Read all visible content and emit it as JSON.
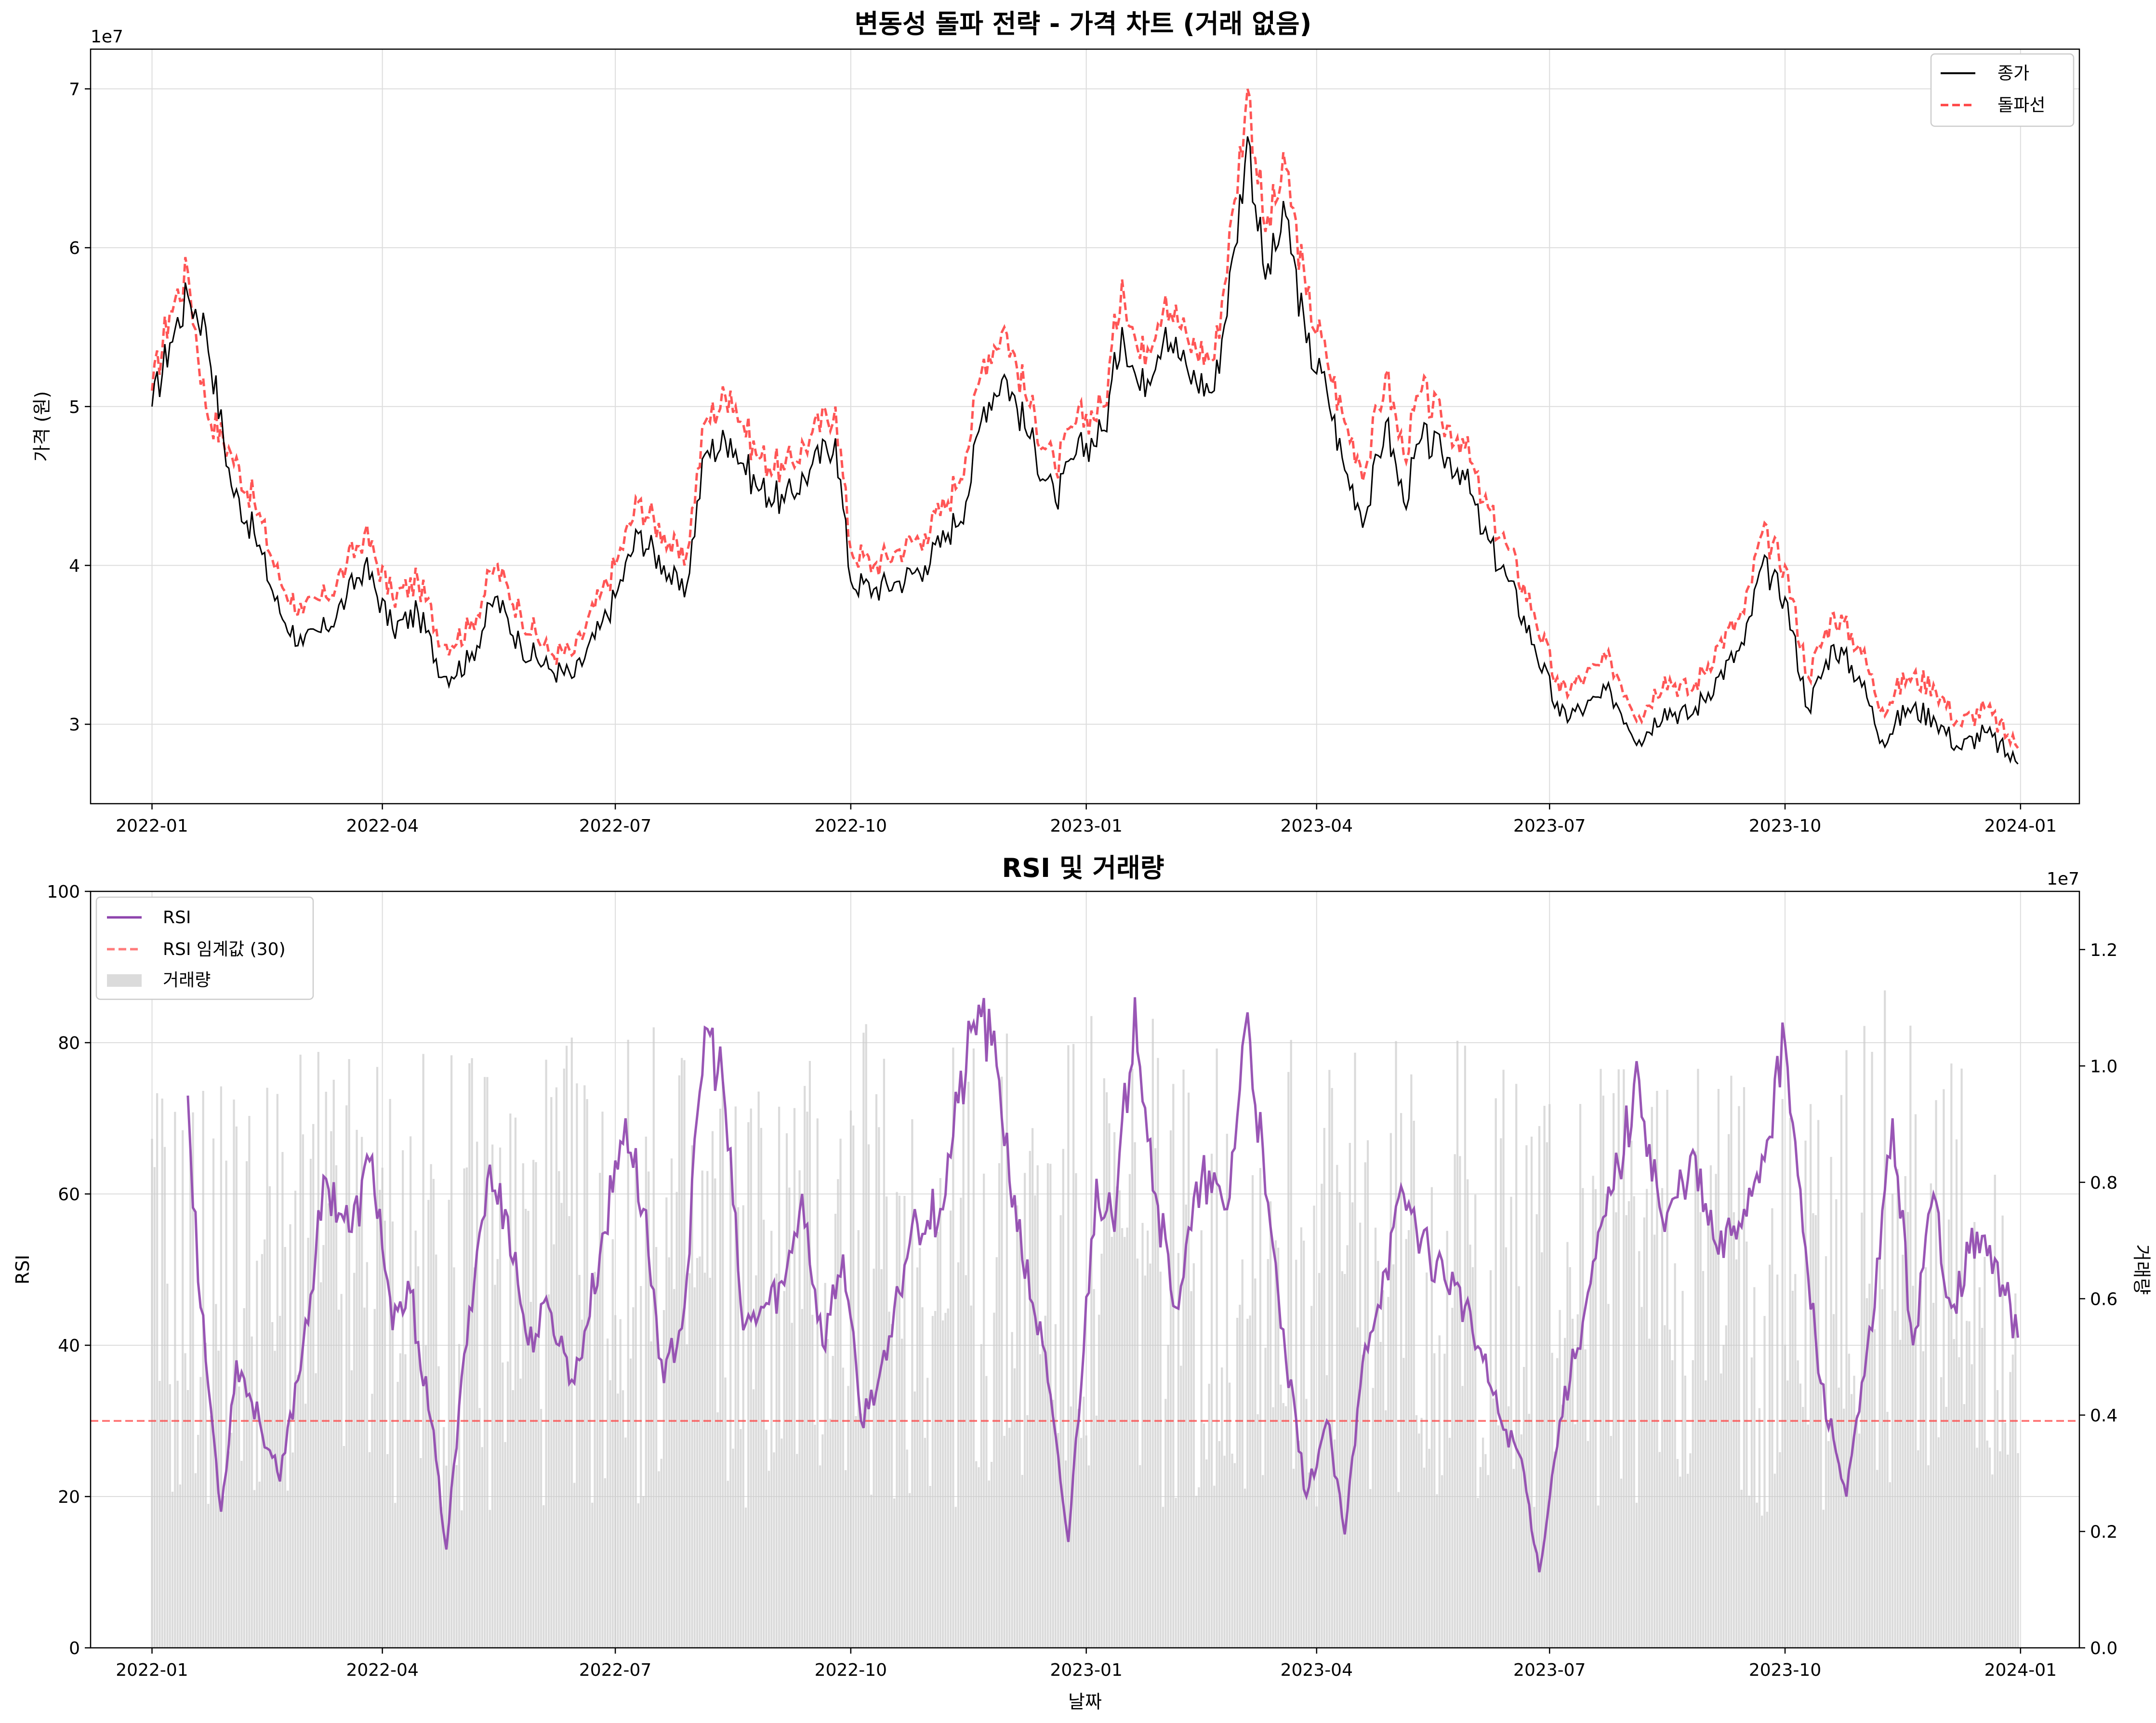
{
  "chart_data": [
    {
      "type": "line",
      "title": "변동성 돌파 전략 - 가격 차트 (거래 없음)",
      "xlabel": "",
      "ylabel": "가격 (원)",
      "y_offset_label": "1e7",
      "x_ticks": [
        "2022-01",
        "2022-04",
        "2022-07",
        "2022-10",
        "2023-01",
        "2023-04",
        "2023-07",
        "2023-10",
        "2024-01"
      ],
      "y_ticks": [
        "3",
        "4",
        "5",
        "6",
        "7"
      ],
      "xlim": [
        "2021-12-08",
        "2024-01-24"
      ],
      "ylim": [
        25000000,
        72500000
      ],
      "grid": true,
      "legend_position": "top-right",
      "series": [
        {
          "name": "종가",
          "color": "#000000",
          "style": "solid",
          "x": [
            "2022-01-01",
            "2022-01-08",
            "2022-01-15",
            "2022-01-22",
            "2022-02-01",
            "2022-02-10",
            "2022-02-20",
            "2022-03-01",
            "2022-03-10",
            "2022-03-18",
            "2022-03-25",
            "2022-04-05",
            "2022-04-15",
            "2022-04-25",
            "2022-05-05",
            "2022-05-15",
            "2022-05-25",
            "2022-06-05",
            "2022-06-15",
            "2022-06-25",
            "2022-07-01",
            "2022-07-10",
            "2022-07-20",
            "2022-07-28",
            "2022-08-05",
            "2022-08-15",
            "2022-08-25",
            "2022-09-05",
            "2022-09-15",
            "2022-09-25",
            "2022-10-01",
            "2022-10-10",
            "2022-10-20",
            "2022-10-30",
            "2022-11-08",
            "2022-11-15",
            "2022-11-22",
            "2022-11-30",
            "2022-12-10",
            "2022-12-20",
            "2022-12-28",
            "2023-01-08",
            "2023-01-15",
            "2023-01-22",
            "2023-02-01",
            "2023-02-10",
            "2023-02-20",
            "2023-02-28",
            "2023-03-05",
            "2023-03-12",
            "2023-03-20",
            "2023-03-28",
            "2023-04-05",
            "2023-04-12",
            "2023-04-20",
            "2023-04-28",
            "2023-05-05",
            "2023-05-12",
            "2023-05-20",
            "2023-05-28",
            "2023-06-05",
            "2023-06-15",
            "2023-06-25",
            "2023-07-05",
            "2023-07-15",
            "2023-07-25",
            "2023-08-05",
            "2023-08-15",
            "2023-08-25",
            "2023-09-05",
            "2023-09-15",
            "2023-09-22",
            "2023-10-01",
            "2023-10-10",
            "2023-10-20",
            "2023-10-30",
            "2023-11-08",
            "2023-11-18",
            "2023-11-28",
            "2023-12-08",
            "2023-12-18",
            "2023-12-31"
          ],
          "values": [
            50000000,
            54000000,
            57000000,
            55000000,
            45000000,
            42000000,
            37000000,
            35000000,
            36000000,
            38000000,
            40000000,
            36000000,
            37000000,
            33000000,
            34000000,
            38000000,
            35000000,
            33500000,
            33000000,
            36000000,
            38000000,
            42000000,
            40000000,
            38000000,
            47000000,
            48000000,
            45000000,
            44000000,
            46000000,
            48000000,
            39000000,
            38500000,
            39000000,
            40000000,
            42000000,
            44000000,
            50000000,
            52000000,
            48000000,
            44000000,
            47000000,
            48500000,
            55000000,
            51000000,
            55000000,
            52000000,
            51000000,
            60000000,
            67000000,
            58000000,
            62000000,
            54000000,
            51000000,
            46000000,
            43000000,
            49000000,
            44000000,
            48000000,
            47000000,
            46000000,
            42000000,
            39000000,
            35000000,
            30500000,
            31000000,
            32000000,
            29000000,
            31000000,
            30500000,
            33000000,
            35000000,
            40000000,
            38000000,
            31000000,
            35000000,
            33000000,
            29000000,
            31000000,
            30500000,
            28500000,
            29500000,
            27500000
          ]
        },
        {
          "name": "돌파선",
          "color": "#ff4444",
          "style": "dashed",
          "x": [
            "2022-01-01",
            "2022-01-08",
            "2022-01-15",
            "2022-01-22",
            "2022-02-01",
            "2022-02-10",
            "2022-02-20",
            "2022-03-01",
            "2022-03-10",
            "2022-03-18",
            "2022-03-25",
            "2022-04-05",
            "2022-04-15",
            "2022-04-25",
            "2022-05-05",
            "2022-05-15",
            "2022-05-25",
            "2022-06-05",
            "2022-06-15",
            "2022-06-25",
            "2022-07-01",
            "2022-07-10",
            "2022-07-20",
            "2022-07-28",
            "2022-08-05",
            "2022-08-15",
            "2022-08-25",
            "2022-09-05",
            "2022-09-15",
            "2022-09-25",
            "2022-10-01",
            "2022-10-10",
            "2022-10-20",
            "2022-10-30",
            "2022-11-08",
            "2022-11-15",
            "2022-11-22",
            "2022-11-30",
            "2022-12-10",
            "2022-12-20",
            "2022-12-28",
            "2023-01-08",
            "2023-01-15",
            "2023-01-22",
            "2023-02-01",
            "2023-02-10",
            "2023-02-20",
            "2023-02-28",
            "2023-03-05",
            "2023-03-12",
            "2023-03-20",
            "2023-03-28",
            "2023-04-05",
            "2023-04-12",
            "2023-04-20",
            "2023-04-28",
            "2023-05-05",
            "2023-05-12",
            "2023-05-20",
            "2023-05-28",
            "2023-06-05",
            "2023-06-15",
            "2023-06-25",
            "2023-07-05",
            "2023-07-15",
            "2023-07-25",
            "2023-08-05",
            "2023-08-15",
            "2023-08-25",
            "2023-09-05",
            "2023-09-15",
            "2023-09-22",
            "2023-10-01",
            "2023-10-10",
            "2023-10-20",
            "2023-10-30",
            "2023-11-08",
            "2023-11-18",
            "2023-11-28",
            "2023-12-08",
            "2023-12-18",
            "2023-12-31"
          ],
          "values": [
            51000000,
            56000000,
            58500000,
            50000000,
            47000000,
            44000000,
            39000000,
            37000000,
            38000000,
            40000000,
            42000000,
            38000000,
            39000000,
            35000000,
            36000000,
            40000000,
            37000000,
            34500000,
            34500000,
            38000000,
            40000000,
            44000000,
            42000000,
            40000000,
            49000000,
            51000000,
            47000000,
            46000000,
            48000000,
            50000000,
            41000000,
            40000000,
            41000000,
            42000000,
            44000000,
            47000000,
            53000000,
            55000000,
            50000000,
            46000000,
            49000000,
            50000000,
            58000000,
            53000000,
            57000000,
            54000000,
            53000000,
            63000000,
            70000000,
            61000000,
            65000000,
            57000000,
            53000000,
            49000000,
            46000000,
            52000000,
            47000000,
            51000000,
            49000000,
            48000000,
            44000000,
            41000000,
            37000000,
            32000000,
            33000000,
            34000000,
            30500000,
            33000000,
            32000000,
            35000000,
            37000000,
            42000000,
            40000000,
            33000000,
            37000000,
            35000000,
            31000000,
            33000000,
            32500000,
            30000000,
            31000000,
            28500000
          ]
        }
      ]
    },
    {
      "type": "line",
      "title": "RSI 및 거래량",
      "xlabel": "날짜",
      "ylabel": "RSI",
      "ylabel_right": "거래량",
      "y_offset_label_right": "1e7",
      "x_ticks": [
        "2022-01",
        "2022-04",
        "2022-07",
        "2022-10",
        "2023-01",
        "2023-04",
        "2023-07",
        "2023-10",
        "2024-01"
      ],
      "y_ticks": [
        "0",
        "20",
        "40",
        "60",
        "80",
        "100"
      ],
      "y_ticks_right": [
        "0.0",
        "0.2",
        "0.4",
        "0.6",
        "0.8",
        "1.0",
        "1.2"
      ],
      "xlim": [
        "2021-12-08",
        "2024-01-24"
      ],
      "ylim": [
        0,
        100
      ],
      "ylim_right": [
        0,
        13000000
      ],
      "grid": true,
      "legend_position": "top-left",
      "series": [
        {
          "name": "RSI",
          "color": "#8e44ad",
          "style": "solid",
          "x": [
            "2022-01-15",
            "2022-01-20",
            "2022-01-28",
            "2022-02-03",
            "2022-02-12",
            "2022-02-20",
            "2022-03-01",
            "2022-03-10",
            "2022-03-20",
            "2022-03-28",
            "2022-04-05",
            "2022-04-12",
            "2022-04-20",
            "2022-04-26",
            "2022-05-05",
            "2022-05-12",
            "2022-05-20",
            "2022-05-28",
            "2022-06-05",
            "2022-06-15",
            "2022-06-25",
            "2022-07-05",
            "2022-07-12",
            "2022-07-20",
            "2022-07-28",
            "2022-08-05",
            "2022-08-12",
            "2022-08-20",
            "2022-08-28",
            "2022-09-05",
            "2022-09-12",
            "2022-09-20",
            "2022-09-28",
            "2022-10-05",
            "2022-10-15",
            "2022-10-25",
            "2022-11-05",
            "2022-11-12",
            "2022-11-20",
            "2022-11-28",
            "2022-12-05",
            "2022-12-15",
            "2022-12-25",
            "2023-01-05",
            "2023-01-12",
            "2023-01-20",
            "2023-01-28",
            "2023-02-05",
            "2023-02-15",
            "2023-02-25",
            "2023-03-05",
            "2023-03-12",
            "2023-03-20",
            "2023-03-28",
            "2023-04-05",
            "2023-04-12",
            "2023-04-20",
            "2023-04-28",
            "2023-05-05",
            "2023-05-15",
            "2023-05-25",
            "2023-06-05",
            "2023-06-12",
            "2023-06-20",
            "2023-06-27",
            "2023-07-05",
            "2023-07-15",
            "2023-07-25",
            "2023-08-05",
            "2023-08-15",
            "2023-08-25",
            "2023-09-05",
            "2023-09-15",
            "2023-09-22",
            "2023-10-01",
            "2023-10-08",
            "2023-10-15",
            "2023-10-25",
            "2023-11-05",
            "2023-11-12",
            "2023-11-20",
            "2023-11-28",
            "2023-12-05",
            "2023-12-15",
            "2023-12-25",
            "2023-12-31"
          ],
          "values": [
            73,
            45,
            18,
            38,
            30,
            22,
            40,
            62,
            55,
            65,
            42,
            47,
            30,
            13,
            45,
            62,
            57,
            40,
            45,
            35,
            52,
            70,
            58,
            35,
            45,
            82,
            75,
            42,
            45,
            48,
            60,
            40,
            52,
            30,
            38,
            56,
            58,
            72,
            85,
            75,
            55,
            40,
            14,
            62,
            55,
            86,
            60,
            45,
            62,
            58,
            84,
            60,
            38,
            20,
            30,
            15,
            40,
            50,
            60,
            52,
            48,
            38,
            30,
            25,
            10,
            30,
            45,
            60,
            75,
            55,
            65,
            52,
            58,
            65,
            80,
            55,
            35,
            20,
            45,
            70,
            40,
            60,
            45,
            55,
            48,
            41
          ]
        },
        {
          "name": "RSI 임계값 (30)",
          "color": "#ff4444",
          "style": "dashed",
          "values": [
            30
          ]
        },
        {
          "name": "거래량",
          "color": "#cccccc",
          "style": "bar",
          "x": [
            "2022-01",
            "2022-02",
            "2022-03",
            "2022-04",
            "2022-05",
            "2022-06",
            "2022-07",
            "2022-08",
            "2022-09",
            "2022-10",
            "2022-11",
            "2022-12",
            "2023-01",
            "2023-02",
            "2023-03",
            "2023-04",
            "2023-05",
            "2023-06",
            "2023-07",
            "2023-08",
            "2023-09",
            "2023-10",
            "2023-11",
            "2023-12"
          ],
          "values": [
            10000000,
            10200000,
            10500000,
            10300000,
            10400000,
            10600000,
            10700000,
            10400000,
            10500000,
            10800000,
            10600000,
            10700000,
            10900000,
            10500000,
            11000000,
            10300000,
            10600000,
            10200000,
            10400000,
            10600000,
            10300000,
            10500000,
            11500000,
            10100000
          ]
        }
      ]
    }
  ]
}
